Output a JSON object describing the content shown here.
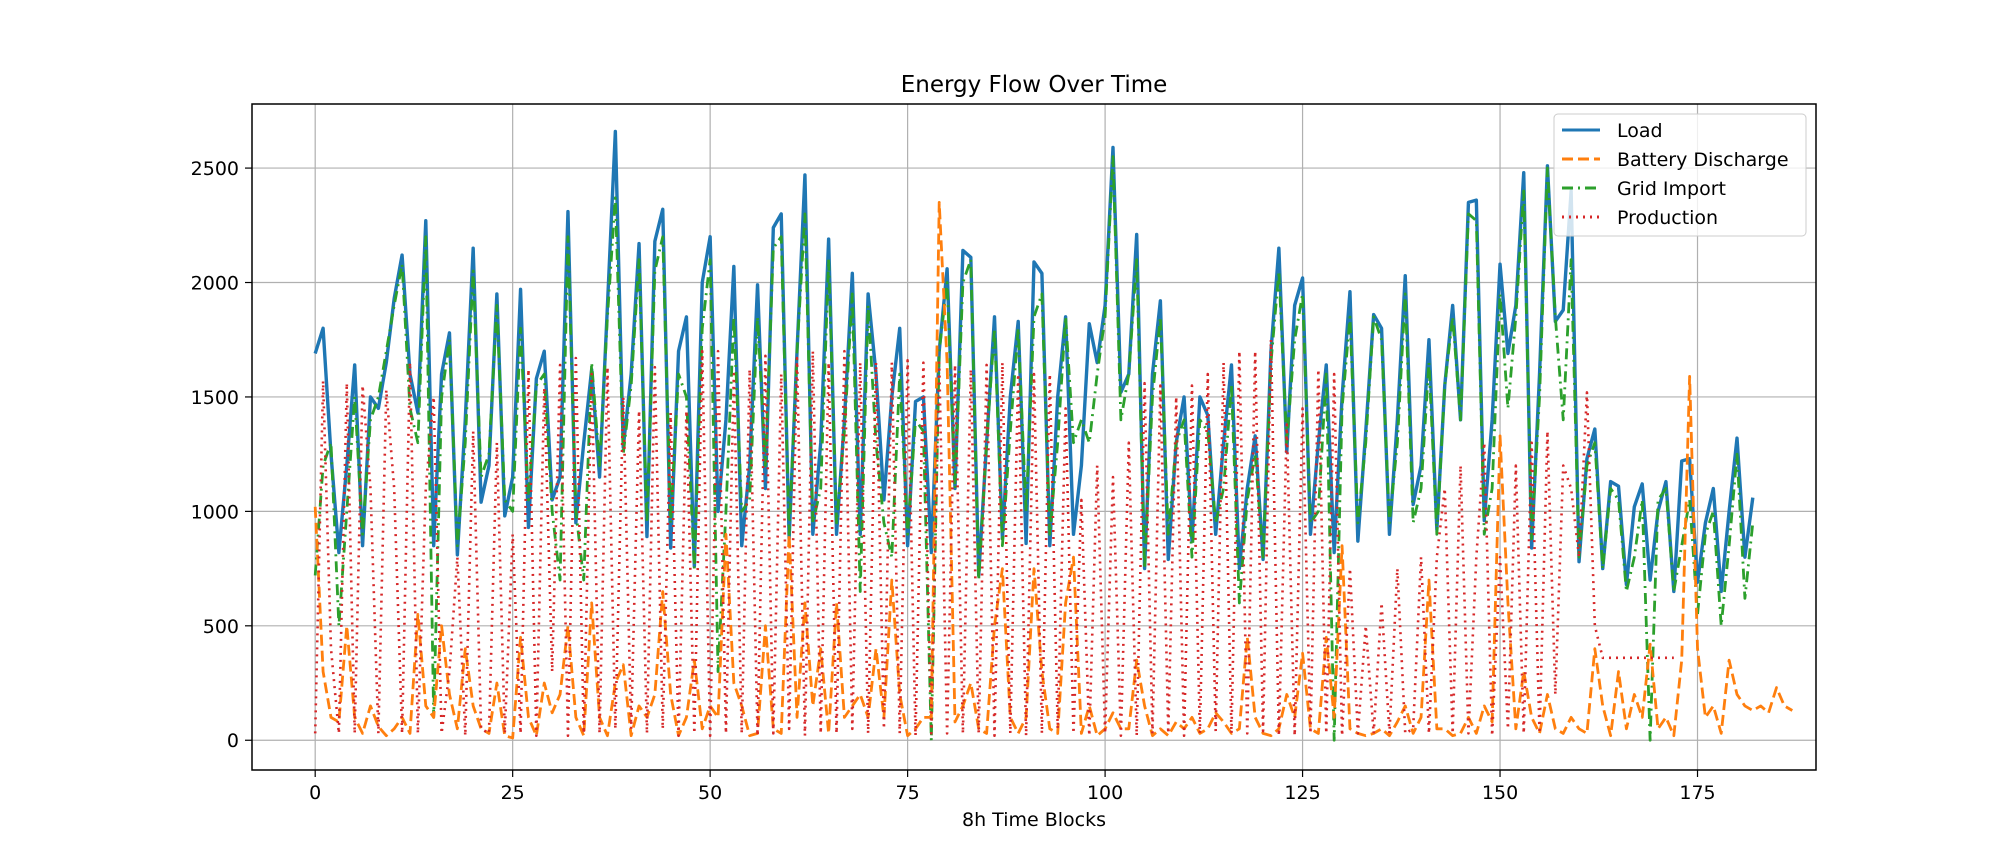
{
  "chart_data": {
    "type": "line",
    "title": "Energy Flow Over Time",
    "xlabel": "8h Time Blocks",
    "ylabel": "",
    "xlim": [
      -8,
      190
    ],
    "ylim": [
      -130,
      2780
    ],
    "grid": true,
    "legend_position": "top-right",
    "x_ticks": [
      0,
      25,
      50,
      75,
      100,
      125,
      150,
      175
    ],
    "y_ticks": [
      0,
      500,
      1000,
      1500,
      2000,
      2500
    ],
    "n_points": 182,
    "series": [
      {
        "name": "Load",
        "color": "#1f77b4",
        "style": "solid",
        "values": [
          1690,
          1800,
          1250,
          820,
          1200,
          1640,
          850,
          1500,
          1450,
          1650,
          1930,
          2120,
          1600,
          1430,
          2270,
          850,
          1600,
          1780,
          810,
          1400,
          2150,
          1040,
          1200,
          1950,
          980,
          1150,
          1970,
          930,
          1580,
          1700,
          1050,
          1150,
          2310,
          950,
          1300,
          1620,
          1150,
          1900,
          2660,
          1280,
          1600,
          2170,
          890,
          2180,
          2320,
          840,
          1700,
          1850,
          760,
          2000,
          2200,
          1000,
          1400,
          2070,
          850,
          1200,
          1990,
          1100,
          2240,
          2300,
          880,
          1700,
          2470,
          900,
          1300,
          2190,
          900,
          1400,
          2040,
          900,
          1950,
          1600,
          1050,
          1500,
          1800,
          850,
          1480,
          1500,
          820,
          1700,
          2060,
          1100,
          2140,
          2110,
          720,
          1300,
          1850,
          880,
          1500,
          1830,
          860,
          2090,
          2040,
          850,
          1500,
          1850,
          900,
          1200,
          1820,
          1650,
          1900,
          2590,
          1520,
          1600,
          2210,
          750,
          1600,
          1920,
          790,
          1300,
          1500,
          870,
          1500,
          1420,
          900,
          1300,
          1640,
          750,
          1100,
          1330,
          790,
          1700,
          2150,
          1260,
          1900,
          2020,
          900,
          1300,
          1640,
          820,
          1500,
          1960,
          870,
          1350,
          1860,
          1800,
          900,
          1400,
          2030,
          1030,
          1200,
          1750,
          920,
          1550,
          1900,
          1400,
          2350,
          2360,
          960,
          1400,
          2080,
          1690,
          1900,
          2480,
          840,
          1600,
          2510,
          1830,
          1880,
          2400,
          780,
          1230,
          1360,
          750,
          1130,
          1110,
          680,
          1020,
          1120,
          700,
          1000,
          1130,
          650,
          1220,
          1230,
          690,
          950,
          1100,
          650,
          1000,
          1320,
          800,
          1060
        ]
      },
      {
        "name": "Battery Discharge",
        "color": "#ff7f0e",
        "style": "dashed",
        "values": [
          1020,
          300,
          100,
          80,
          500,
          100,
          30,
          150,
          60,
          20,
          50,
          100,
          30,
          550,
          150,
          100,
          500,
          200,
          50,
          400,
          150,
          50,
          30,
          250,
          20,
          10,
          450,
          100,
          20,
          250,
          120,
          200,
          500,
          100,
          20,
          600,
          100,
          20,
          250,
          330,
          20,
          150,
          100,
          200,
          650,
          200,
          20,
          100,
          350,
          50,
          150,
          100,
          900,
          250,
          150,
          20,
          30,
          500,
          50,
          30,
          900,
          100,
          600,
          150,
          400,
          30,
          600,
          100,
          150,
          200,
          100,
          400,
          100,
          700,
          200,
          20,
          50,
          100,
          100,
          2350,
          1650,
          80,
          150,
          250,
          50,
          30,
          500,
          750,
          100,
          30,
          100,
          750,
          300,
          50,
          30,
          600,
          800,
          30,
          150,
          20,
          50,
          120,
          50,
          50,
          350,
          150,
          20,
          50,
          20,
          80,
          50,
          100,
          30,
          50,
          120,
          80,
          30,
          50,
          450,
          100,
          30,
          20,
          50,
          200,
          100,
          380,
          50,
          30,
          450,
          100,
          850,
          50,
          30,
          20,
          30,
          50,
          20,
          80,
          150,
          30,
          100,
          700,
          50,
          50,
          20,
          30,
          100,
          30,
          150,
          80,
          1330,
          600,
          50,
          300,
          100,
          30,
          200,
          50,
          30,
          100,
          50,
          30,
          400,
          150,
          20,
          300,
          50,
          200,
          100,
          420,
          50,
          100,
          20,
          350,
          1590,
          400,
          100,
          150,
          30,
          350,
          200,
          150,
          130,
          150,
          120,
          230,
          150,
          130
        ]
      },
      {
        "name": "Grid Import",
        "color": "#2ca02c",
        "style": "dashdot",
        "values": [
          720,
          1200,
          1300,
          500,
          1000,
          1500,
          900,
          1400,
          1500,
          1700,
          1900,
          2080,
          1450,
          1300,
          2200,
          100,
          1500,
          1750,
          850,
          1300,
          2050,
          1150,
          1250,
          1900,
          1050,
          1000,
          1800,
          1050,
          1550,
          1600,
          1000,
          700,
          2200,
          1000,
          700,
          1650,
          1200,
          1850,
          2370,
          1250,
          1550,
          2100,
          950,
          2050,
          2200,
          950,
          1600,
          1500,
          750,
          1800,
          2100,
          300,
          1000,
          1850,
          1000,
          1050,
          1850,
          1200,
          2150,
          2200,
          900,
          1700,
          2300,
          950,
          1100,
          2100,
          950,
          1350,
          1950,
          650,
          1900,
          1300,
          950,
          800,
          1600,
          900,
          1400,
          1350,
          0,
          1700,
          2000,
          1100,
          2000,
          2100,
          700,
          1300,
          1800,
          850,
          1350,
          1800,
          1000,
          1850,
          1950,
          900,
          1300,
          1850,
          1300,
          1400,
          1300,
          1600,
          1850,
          2550,
          1400,
          1600,
          2100,
          750,
          1500,
          1850,
          900,
          1300,
          1400,
          800,
          1400,
          1350,
          950,
          1100,
          1550,
          600,
          1050,
          1250,
          800,
          1650,
          2050,
          1300,
          1750,
          1950,
          950,
          1000,
          1600,
          0,
          1450,
          1850,
          950,
          1300,
          1850,
          1750,
          950,
          1300,
          1950,
          950,
          1100,
          1650,
          900,
          1550,
          1850,
          1400,
          2300,
          2270,
          900,
          1100,
          1950,
          1450,
          1850,
          2400,
          880,
          1500,
          2500,
          1850,
          1400,
          2100,
          800,
          1200,
          1300,
          750,
          1100,
          1050,
          650,
          800,
          1050,
          0,
          1050,
          1100,
          650,
          850,
          1050,
          550,
          900,
          1000,
          500,
          850,
          1250,
          620,
          950
        ]
      },
      {
        "name": "Production",
        "color": "#d62728",
        "style": "dotted",
        "values": [
          30,
          1570,
          400,
          30,
          1560,
          30,
          1550,
          1100,
          30,
          1530,
          1100,
          30,
          1650,
          30,
          1100,
          1500,
          30,
          300,
          800,
          20,
          1350,
          50,
          30,
          1300,
          30,
          900,
          30,
          1620,
          20,
          1540,
          300,
          1640,
          20,
          1670,
          30,
          1600,
          30,
          1630,
          50,
          1500,
          50,
          1440,
          30,
          1630,
          50,
          1430,
          20,
          1440,
          30,
          1700,
          20,
          1700,
          30,
          1600,
          30,
          1620,
          20,
          1680,
          30,
          1600,
          50,
          1670,
          20,
          1700,
          30,
          1650,
          30,
          1700,
          50,
          1650,
          30,
          1650,
          50,
          1650,
          30,
          1660,
          20,
          1650,
          30,
          1650,
          30,
          1640,
          30,
          1620,
          30,
          1640,
          20,
          1650,
          30,
          1600,
          20,
          1600,
          30,
          1600,
          50,
          1450,
          30,
          1050,
          20,
          1200,
          30,
          1150,
          20,
          1300,
          20,
          1560,
          30,
          1550,
          30,
          1500,
          20,
          1550,
          30,
          1600,
          40,
          1650,
          30,
          1700,
          30,
          1700,
          40,
          1750,
          20,
          1380,
          20,
          1450,
          30,
          1620,
          30,
          1600,
          20,
          750,
          30,
          500,
          30,
          600,
          30,
          750,
          30,
          50,
          800,
          30,
          800,
          1100,
          30,
          1200,
          30,
          800,
          1300,
          20,
          800,
          50,
          1200,
          30,
          1300,
          30,
          1350,
          200,
          1200,
          1100,
          800,
          1520,
          500,
          360,
          360,
          360,
          360,
          360,
          360,
          360,
          360,
          360,
          360
        ]
      }
    ]
  }
}
